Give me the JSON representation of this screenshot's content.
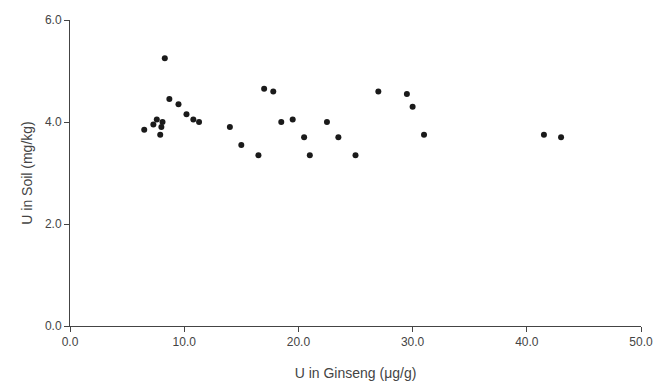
{
  "chart_data": {
    "type": "scatter",
    "xlabel": "U in Ginseng (μg/g)",
    "ylabel": "U in Soil (mg/kg)",
    "x": [
      6.5,
      7.3,
      7.6,
      7.9,
      8.0,
      8.1,
      8.3,
      8.7,
      9.5,
      10.2,
      10.8,
      11.3,
      14.0,
      15.0,
      16.5,
      17.0,
      17.8,
      18.5,
      19.5,
      20.5,
      21.0,
      22.5,
      23.5,
      25.0,
      27.0,
      29.5,
      30.0,
      31.0,
      41.5,
      43.0
    ],
    "values": [
      3.85,
      3.95,
      4.05,
      3.75,
      3.9,
      4.0,
      5.25,
      4.45,
      4.35,
      4.15,
      4.05,
      4.0,
      3.9,
      3.55,
      3.35,
      4.65,
      4.6,
      4.0,
      4.05,
      3.7,
      3.35,
      4.0,
      3.7,
      3.35,
      4.6,
      4.55,
      4.3,
      3.75,
      3.75,
      3.7
    ],
    "color": "#1a1a1a",
    "xlim": [
      0.0,
      50.0
    ],
    "ylim": [
      0.0,
      6.0
    ],
    "xticks": [
      {
        "value": 0.0,
        "label": "0.0"
      },
      {
        "value": 10.0,
        "label": "10.0"
      },
      {
        "value": 20.0,
        "label": "20.0"
      },
      {
        "value": 30.0,
        "label": "30.0"
      },
      {
        "value": 40.0,
        "label": "40.0"
      },
      {
        "value": 50.0,
        "label": "50.0"
      }
    ],
    "yticks": [
      {
        "value": 0.0,
        "label": "0.0"
      },
      {
        "value": 2.0,
        "label": "2.0"
      },
      {
        "value": 4.0,
        "label": "4.0"
      },
      {
        "value": 6.0,
        "label": "6.0"
      }
    ],
    "grid": false
  }
}
